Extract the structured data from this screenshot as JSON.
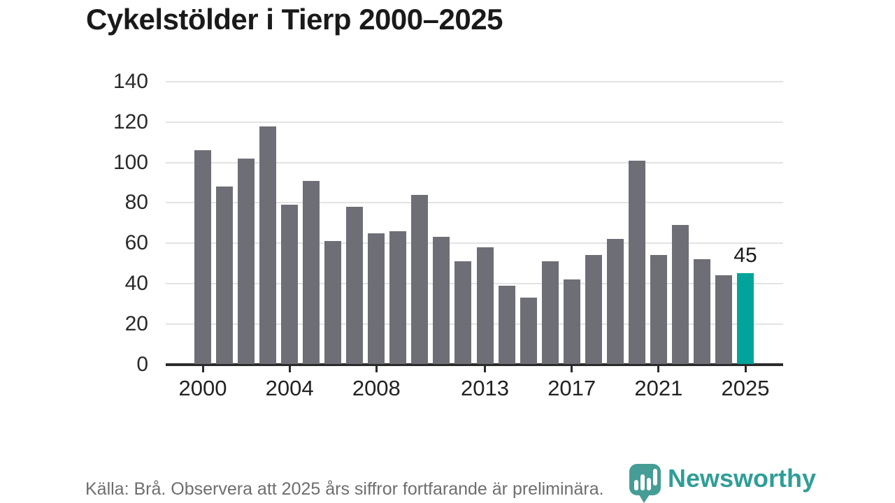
{
  "chart": {
    "title": "Cykelstölder i Tierp 2000–2025",
    "source_note": "Källa: Brå. Observera att 2025 års siffror fortfarande är preliminära."
  },
  "brand": {
    "name": "Newsworthy",
    "icon": "speech-bubble-bar-chart-icon",
    "color": "#2f9e97",
    "icon_color": "#459d96"
  },
  "chart_data": {
    "type": "bar",
    "title": "Cykelstölder i Tierp 2000–2025",
    "xlabel": "",
    "ylabel": "",
    "categories": [
      2000,
      2001,
      2002,
      2003,
      2004,
      2005,
      2006,
      2007,
      2008,
      2009,
      2010,
      2011,
      2012,
      2013,
      2014,
      2015,
      2016,
      2017,
      2018,
      2019,
      2020,
      2021,
      2022,
      2023,
      2024,
      2025
    ],
    "values": [
      106,
      88,
      102,
      118,
      79,
      91,
      61,
      78,
      65,
      66,
      84,
      63,
      51,
      58,
      39,
      33,
      51,
      42,
      54,
      62,
      101,
      54,
      69,
      52,
      44,
      45
    ],
    "ylim": [
      0,
      140
    ],
    "y_ticks": [
      0,
      20,
      40,
      60,
      80,
      100,
      120,
      140
    ],
    "x_tick_labels": [
      "2000",
      "2004",
      "2008",
      "2013",
      "2017",
      "2021",
      "2025"
    ],
    "grid": "horizontal",
    "legend": "none",
    "highlight_index": 25,
    "highlight_value_label": "45",
    "bar_color": "#6e6e76",
    "highlight_color": "#00a49b",
    "gridline_color": "#e3e3e3",
    "axis_color": "#2b2b2b"
  }
}
